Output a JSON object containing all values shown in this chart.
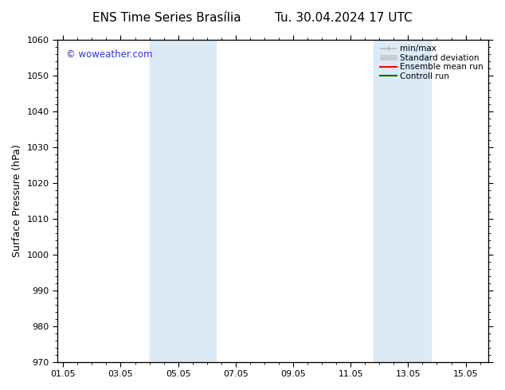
{
  "title": "ENS Time Series Brasília",
  "title2": "Tu. 30.04.2024 17 UTC",
  "ylabel": "Surface Pressure (hPa)",
  "ylim": [
    970,
    1060
  ],
  "yticks": [
    970,
    980,
    990,
    1000,
    1010,
    1020,
    1030,
    1040,
    1050,
    1060
  ],
  "xtick_labels": [
    "01.05",
    "03.05",
    "05.05",
    "07.05",
    "09.05",
    "11.05",
    "13.05",
    "15.05"
  ],
  "xtick_positions": [
    0,
    2,
    4,
    6,
    8,
    10,
    12,
    14
  ],
  "xlim": [
    -0.2,
    14.8
  ],
  "watermark": "© woweather.com",
  "watermark_color": "#3333cc",
  "bg_color": "#ffffff",
  "plot_bg_color": "#ffffff",
  "shaded_bands": [
    {
      "x_start": 3.0,
      "x_end": 5.3
    },
    {
      "x_start": 10.8,
      "x_end": 12.8
    }
  ],
  "shaded_color": "#daeaf7",
  "legend_items": [
    {
      "label": "min/max",
      "color": "#bbbbbb",
      "lw": 1.2
    },
    {
      "label": "Standard deviation",
      "color": "#cccccc",
      "lw": 5
    },
    {
      "label": "Ensemble mean run",
      "color": "#ff0000",
      "lw": 1.5
    },
    {
      "label": "Controll run",
      "color": "#006600",
      "lw": 1.5
    }
  ],
  "title_fontsize": 11,
  "label_fontsize": 9,
  "tick_fontsize": 8,
  "legend_fontsize": 7.5,
  "minor_tick_count": 4
}
